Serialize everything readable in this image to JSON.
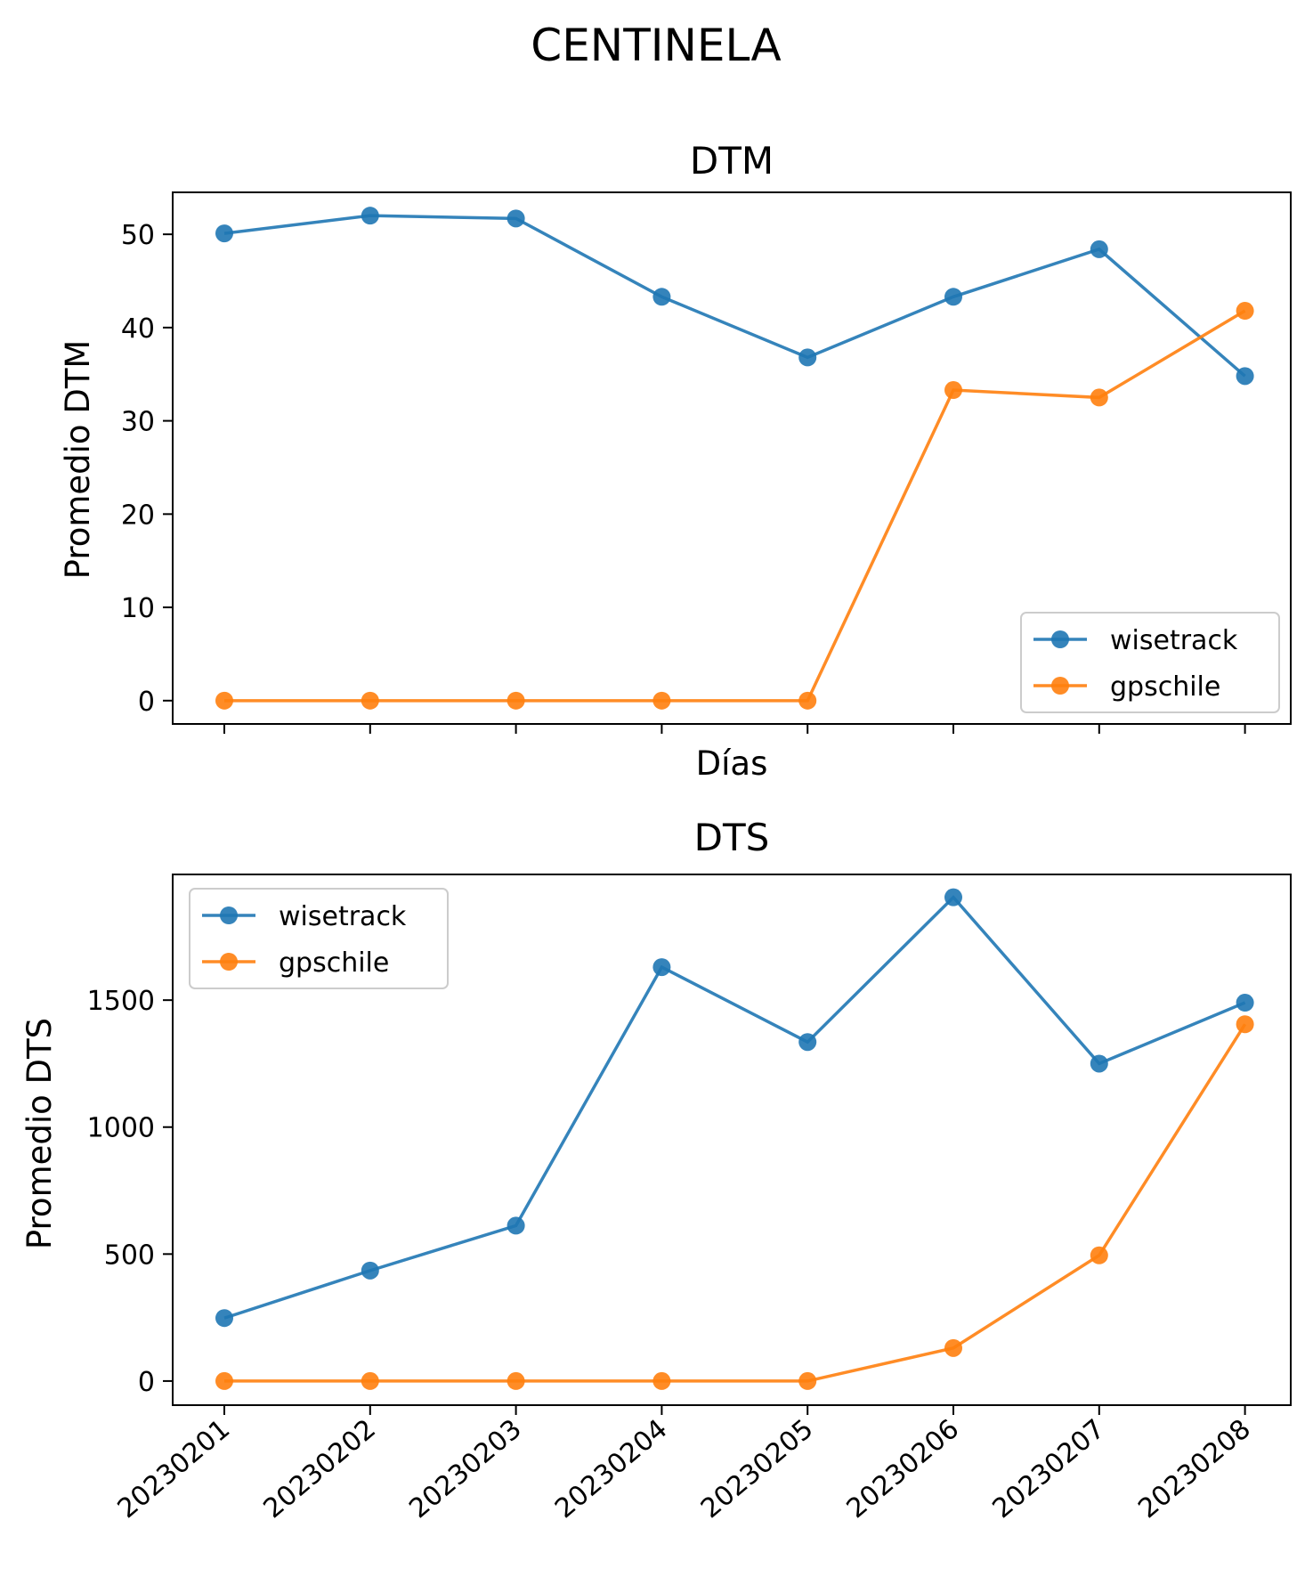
{
  "figure": {
    "title": "CENTINELA"
  },
  "colors": {
    "wisetrack": "#1f77b4",
    "gpschile": "#ff7f0e"
  },
  "chart_data": [
    {
      "type": "line",
      "title": "DTM",
      "xlabel": "Días",
      "ylabel": "Promedio DTM",
      "categories": [
        "20230201",
        "20230202",
        "20230203",
        "20230204",
        "20230205",
        "20230206",
        "20230207",
        "20230208"
      ],
      "show_x_tick_labels": false,
      "ylim": [
        -2.5,
        54.5
      ],
      "yticks": [
        0,
        10,
        20,
        30,
        40,
        50
      ],
      "legend": "lower-right",
      "grid": false,
      "series": [
        {
          "name": "wisetrack",
          "color": "#1f77b4",
          "values": [
            50.1,
            52.0,
            51.7,
            43.3,
            36.8,
            43.3,
            48.4,
            34.8
          ]
        },
        {
          "name": "gpschile",
          "color": "#ff7f0e",
          "values": [
            0,
            0,
            0,
            0,
            0,
            33.3,
            32.5,
            41.8
          ]
        }
      ]
    },
    {
      "type": "line",
      "title": "DTS",
      "xlabel": "",
      "ylabel": "Promedio DTS",
      "categories": [
        "20230201",
        "20230202",
        "20230203",
        "20230204",
        "20230205",
        "20230206",
        "20230207",
        "20230208"
      ],
      "show_x_tick_labels": true,
      "ylim": [
        -95,
        1995
      ],
      "yticks": [
        0,
        500,
        1000,
        1500
      ],
      "legend": "upper-left",
      "grid": false,
      "series": [
        {
          "name": "wisetrack",
          "color": "#1f77b4",
          "values": [
            248,
            435,
            612,
            1630,
            1335,
            1905,
            1250,
            1490
          ]
        },
        {
          "name": "gpschile",
          "color": "#ff7f0e",
          "values": [
            0,
            0,
            0,
            0,
            0,
            130,
            495,
            1405
          ]
        }
      ]
    }
  ]
}
